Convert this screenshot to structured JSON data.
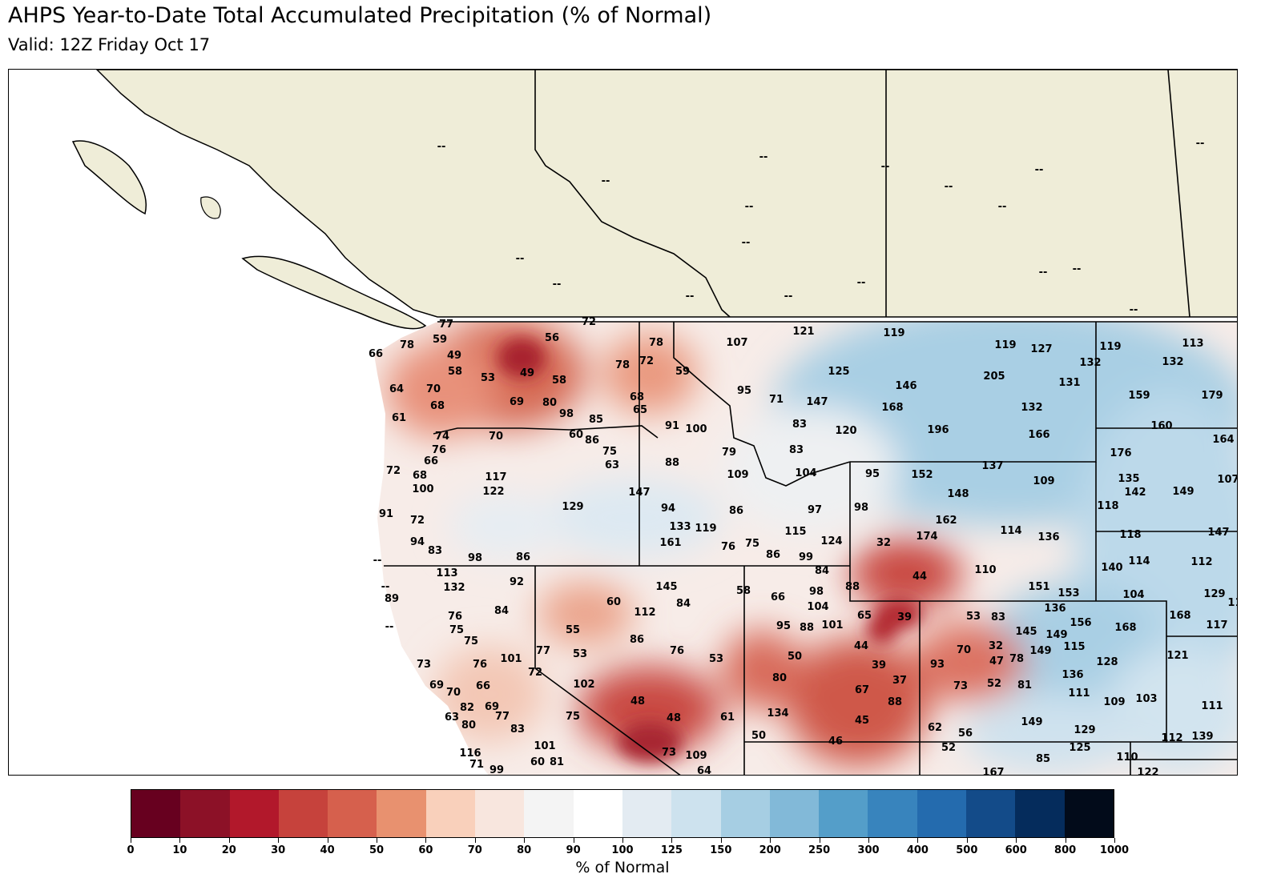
{
  "title": "AHPS Year-to-Date Total Accumulated Precipitation (% of Normal)",
  "subtitle": "Valid: 12Z Friday Oct 17",
  "colorbar": {
    "label": "% of Normal",
    "ticks": [
      "0",
      "10",
      "20",
      "30",
      "40",
      "50",
      "60",
      "70",
      "80",
      "90",
      "100",
      "125",
      "150",
      "200",
      "250",
      "300",
      "400",
      "500",
      "600",
      "800",
      "1000"
    ],
    "colors": [
      "#67001f",
      "#8c1127",
      "#b2182b",
      "#c6423c",
      "#d6604d",
      "#e8916f",
      "#f9d0bb",
      "#f8e6de",
      "#f4f4f4",
      "#ffffff",
      "#e3ebf2",
      "#cde2ee",
      "#a6cee3",
      "#82b9d8",
      "#549ec9",
      "#3884bd",
      "#246bae",
      "#134b89",
      "#052c5c",
      "#020b1a"
    ]
  },
  "map": {
    "land_color": "#efedd8",
    "station_values": [
      "--",
      "--",
      "--",
      "--",
      "--",
      "--",
      "--",
      "--",
      "--",
      "--",
      "--",
      "--",
      "--",
      "--",
      "--",
      "--",
      "--",
      "--",
      "--",
      "--",
      "--",
      "77",
      "72",
      "56",
      "78",
      "59",
      "66",
      "49",
      "49",
      "58",
      "53",
      "58",
      "78",
      "78",
      "72",
      "59",
      "107",
      "121",
      "119",
      "119",
      "127",
      "119",
      "113",
      "132",
      "132",
      "125",
      "205",
      "131",
      "146",
      "95",
      "71",
      "147",
      "168",
      "132",
      "159",
      "179",
      "64",
      "70",
      "68",
      "69",
      "80",
      "98",
      "85",
      "68",
      "65",
      "91",
      "100",
      "83",
      "120",
      "196",
      "166",
      "160",
      "164",
      "61",
      "74",
      "70",
      "60",
      "86",
      "75",
      "76",
      "66",
      "63",
      "88",
      "79",
      "83",
      "176",
      "137",
      "152",
      "109",
      "95",
      "104",
      "109",
      "72",
      "68",
      "100",
      "117",
      "122",
      "147",
      "135",
      "142",
      "149",
      "107",
      "118",
      "148",
      "129",
      "94",
      "86",
      "97",
      "98",
      "91",
      "72",
      "133",
      "119",
      "115",
      "162",
      "174",
      "114",
      "136",
      "118",
      "147",
      "94",
      "83",
      "161",
      "76",
      "75",
      "86",
      "124",
      "32",
      "99",
      "98",
      "86",
      "140",
      "114",
      "112",
      "113",
      "84",
      "110",
      "44",
      "132",
      "92",
      "145",
      "89",
      "98",
      "88",
      "151",
      "153",
      "104",
      "129",
      "115",
      "60",
      "84",
      "58",
      "66",
      "104",
      "112",
      "76",
      "84",
      "65",
      "39",
      "53",
      "83",
      "136",
      "156",
      "168",
      "168",
      "117",
      "75",
      "55",
      "86",
      "95",
      "88",
      "101",
      "145",
      "149",
      "115",
      "149",
      "75",
      "77",
      "76",
      "44",
      "70",
      "32",
      "73",
      "76",
      "101",
      "53",
      "53",
      "50",
      "93",
      "47",
      "78",
      "128",
      "121",
      "72",
      "39",
      "37",
      "136",
      "80",
      "102",
      "73",
      "52",
      "81",
      "69",
      "66",
      "67",
      "111",
      "109",
      "103",
      "111",
      "70",
      "82",
      "69",
      "48",
      "88",
      "134",
      "77",
      "48",
      "61",
      "45",
      "149",
      "63",
      "80",
      "75",
      "83",
      "62",
      "56",
      "129",
      "112",
      "139",
      "50",
      "46",
      "52",
      "101",
      "73",
      "109",
      "125",
      "110",
      "116",
      "60",
      "81",
      "85",
      "71",
      "99",
      "64",
      "167",
      "122"
    ]
  }
}
